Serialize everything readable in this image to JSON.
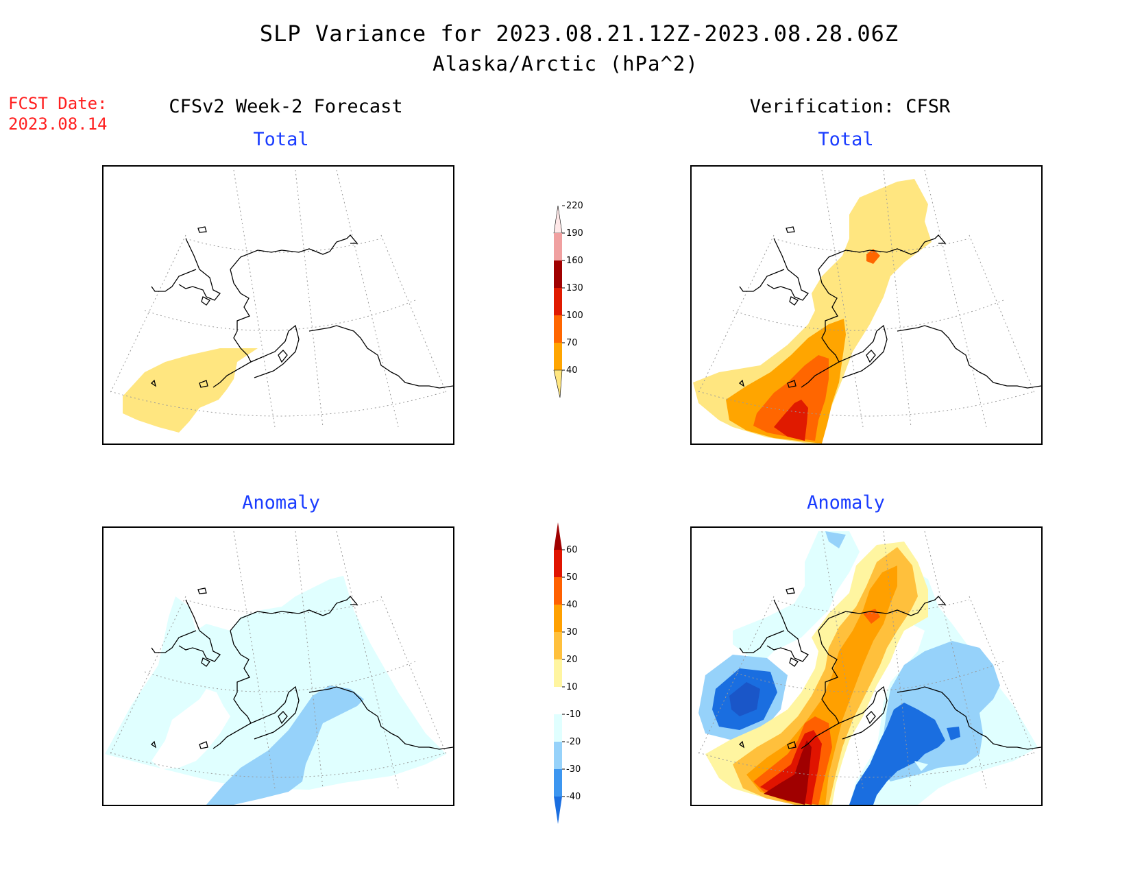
{
  "title": {
    "line1": "SLP Variance for 2023.08.21.12Z-2023.08.28.06Z",
    "line2": "Alaska/Arctic (hPa^2)"
  },
  "fcst_date": {
    "label": "FCST Date:",
    "value": "2023.08.14"
  },
  "columns": {
    "left": {
      "heading": "CFSv2 Week-2 Forecast"
    },
    "right": {
      "heading": "Verification: CFSR"
    }
  },
  "panels": {
    "total_label": "Total",
    "anomaly_label": "Anomaly"
  },
  "colorbars": {
    "total": {
      "ticks": [
        "40",
        "70",
        "100",
        "130",
        "160",
        "190",
        "220"
      ],
      "colors": [
        "#ffe680",
        "#ffa500",
        "#ff6600",
        "#e01a00",
        "#a00000",
        "#f0a0a0",
        "#ffe8e8"
      ]
    },
    "anomaly": {
      "ticks": [
        "-40",
        "-30",
        "-20",
        "-10",
        "10",
        "20",
        "30",
        "40",
        "50",
        "60"
      ],
      "colors": [
        "#1a6ee0",
        "#3c96f0",
        "#96d2fa",
        "#e0ffff",
        "#ffffff",
        "#fff5a0",
        "#ffc03c",
        "#ffa000",
        "#ff6000",
        "#e01400",
        "#a00000"
      ]
    }
  }
}
